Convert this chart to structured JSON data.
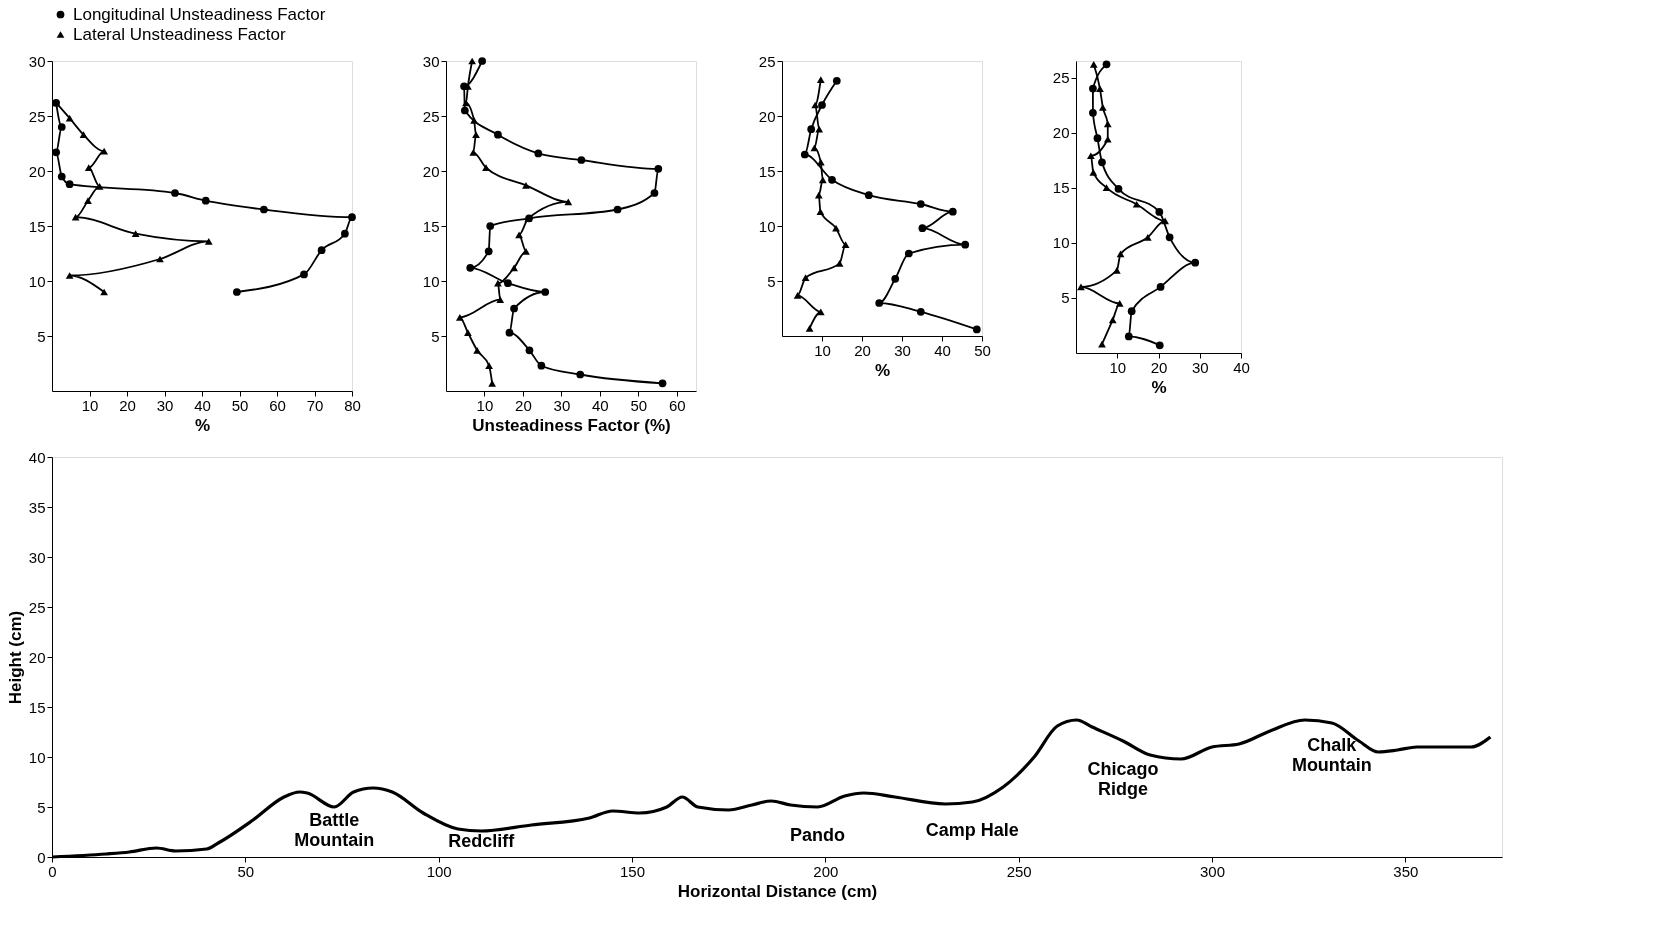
{
  "chart_data": [
    {
      "type": "line",
      "xlabel": "Horizontal Distance (cm)",
      "ylabel": "Height (cm)",
      "xlim": [
        0,
        375
      ],
      "ylim": [
        0,
        40
      ],
      "xticks": [
        0,
        50,
        100,
        150,
        200,
        250,
        300,
        350
      ],
      "yticks": [
        0,
        5,
        10,
        15,
        20,
        25,
        30,
        35,
        40
      ],
      "series": [
        {
          "color": "#000000",
          "marker": "none",
          "line_style": "solid",
          "x": [
            0,
            14,
            20,
            27,
            32,
            40,
            43,
            52,
            60,
            64,
            66,
            73,
            78,
            83,
            88,
            96,
            105,
            111,
            124,
            139,
            145,
            152,
            159,
            163,
            167,
            175,
            181,
            186,
            191,
            198,
            205,
            210,
            218,
            231,
            238,
            246,
            254,
            260,
            265,
            269,
            277,
            284,
            292,
            300,
            307,
            315,
            324,
            331,
            338,
            343,
            348,
            353,
            367,
            372
          ],
          "values": [
            0,
            0.3,
            0.5,
            0.9,
            0.6,
            0.8,
            1.4,
            3.7,
            6.0,
            6.5,
            6.4,
            5.0,
            6.5,
            6.9,
            6.5,
            4.4,
            2.8,
            2.6,
            3.2,
            3.9,
            4.6,
            4.4,
            5.0,
            6.0,
            5.0,
            4.7,
            5.2,
            5.6,
            5.2,
            5.0,
            6.1,
            6.4,
            6.0,
            5.3,
            5.5,
            7.0,
            10.0,
            13.1,
            13.7,
            13.0,
            11.6,
            10.2,
            9.8,
            11.0,
            11.3,
            12.6,
            13.7,
            13.4,
            11.6,
            10.5,
            10.7,
            11.0,
            11.0,
            12.0
          ]
        }
      ],
      "annotations": [
        {
          "text": "Battle\nMountain",
          "x": 73,
          "y": 5.0
        },
        {
          "text": "Redcliff",
          "x": 111,
          "y": 2.6
        },
        {
          "text": "Pando",
          "x": 198,
          "y": 5.0
        },
        {
          "text": "Camp Hale",
          "x": 238,
          "y": 5.5
        },
        {
          "text": "Chicago\nRidge",
          "x": 277,
          "y": 11.6
        },
        {
          "text": "Chalk\nMountain",
          "x": 331,
          "y": 13.4
        }
      ]
    },
    {
      "type": "line",
      "xlabel": "%",
      "xlim": [
        0,
        80
      ],
      "ylim": [
        0,
        30
      ],
      "xticks": [
        10,
        20,
        30,
        40,
        50,
        60,
        70,
        80
      ],
      "yticks": [
        5,
        10,
        15,
        20,
        25,
        30
      ],
      "legend": "top",
      "series": [
        {
          "name": "Longitudinal Unsteadiness Factor",
          "color": "#000000",
          "marker": "circle",
          "line_style": "solid",
          "x": [
            1.1,
            2.6,
            1.1,
            2.6,
            4.7,
            32.8,
            41.0,
            56.5,
            80.0,
            78.1,
            71.9,
            67.2,
            49.3
          ],
          "values": [
            26.2,
            24.0,
            21.7,
            19.5,
            18.8,
            18.0,
            17.3,
            16.5,
            15.8,
            14.3,
            12.8,
            10.6,
            9.0
          ]
        },
        {
          "name": "Lateral Unsteadiness Factor",
          "color": "#000000",
          "marker": "triangle",
          "line_style": "solid",
          "x": [
            1.1,
            4.7,
            8.4,
            13.9,
            9.8,
            12.7,
            9.6,
            6.3,
            22.3,
            41.8,
            28.8,
            4.7,
            13.9
          ],
          "values": [
            26.2,
            24.8,
            23.3,
            21.8,
            20.3,
            18.6,
            17.3,
            15.8,
            14.3,
            13.6,
            12.0,
            10.5,
            9.0
          ]
        }
      ]
    },
    {
      "type": "line",
      "xlabel": "Unsteadiness Factor (%)",
      "xlim": [
        0,
        65
      ],
      "ylim": [
        0,
        30
      ],
      "xticks": [
        10,
        20,
        30,
        40,
        50,
        60
      ],
      "yticks": [
        5,
        10,
        15,
        20,
        25,
        30
      ],
      "series": [
        {
          "color": "#000000",
          "marker": "circle",
          "line_style": "solid",
          "x": [
            9.4,
            4.7,
            4.9,
            13.5,
            24.0,
            35.2,
            55.2,
            54.2,
            44.6,
            21.6,
            11.5,
            11.1,
            6.3,
            16.1,
            25.8,
            17.7,
            16.5,
            21.7,
            24.8,
            34.9,
            56.3
          ],
          "values": [
            30.0,
            27.7,
            25.5,
            23.3,
            21.6,
            21.0,
            20.2,
            18.0,
            16.5,
            15.7,
            15.0,
            12.7,
            11.2,
            9.8,
            9.0,
            7.5,
            5.3,
            3.7,
            2.3,
            1.5,
            0.7
          ]
        },
        {
          "color": "#000000",
          "marker": "triangle",
          "line_style": "solid",
          "x": [
            6.8,
            5.7,
            5.2,
            7.3,
            7.8,
            7.1,
            10.4,
            20.8,
            31.8,
            21.4,
            19.0,
            20.8,
            17.7,
            13.5,
            14.1,
            3.6,
            5.7,
            8.1,
            11.2,
            12.0
          ],
          "values": [
            30.0,
            27.7,
            26.2,
            24.6,
            23.3,
            21.7,
            20.3,
            18.7,
            17.2,
            15.7,
            14.2,
            12.7,
            11.2,
            9.8,
            8.3,
            6.7,
            5.3,
            3.7,
            2.3,
            0.7
          ]
        }
      ]
    },
    {
      "type": "line",
      "xlabel": "%",
      "xlim": [
        0,
        50
      ],
      "ylim": [
        0,
        25
      ],
      "xticks": [
        10,
        20,
        30,
        40,
        50
      ],
      "yticks": [
        5,
        10,
        15,
        20,
        25
      ],
      "series": [
        {
          "color": "#000000",
          "marker": "circle",
          "line_style": "solid",
          "x": [
            13.7,
            10.0,
            7.3,
            5.7,
            12.5,
            21.7,
            34.7,
            42.7,
            35.1,
            45.8,
            31.7,
            28.3,
            24.3,
            34.7,
            48.7
          ],
          "values": [
            23.2,
            21.0,
            18.8,
            16.5,
            14.2,
            12.8,
            12.0,
            11.3,
            9.8,
            8.3,
            7.5,
            5.2,
            3.0,
            2.2,
            0.6
          ]
        },
        {
          "color": "#000000",
          "marker": "triangle",
          "line_style": "solid",
          "x": [
            9.7,
            8.3,
            9.3,
            8.1,
            9.7,
            10.2,
            9.2,
            9.6,
            13.5,
            15.9,
            14.4,
            5.9,
            3.9,
            9.7,
            6.9
          ],
          "values": [
            23.3,
            21.0,
            18.8,
            17.1,
            15.8,
            14.2,
            12.8,
            11.3,
            9.8,
            8.3,
            6.6,
            5.3,
            3.7,
            2.2,
            0.7
          ]
        }
      ]
    },
    {
      "type": "line",
      "xlabel": "%",
      "xlim": [
        0,
        40
      ],
      "ylim": [
        0,
        26.5
      ],
      "xticks": [
        10,
        20,
        30,
        40
      ],
      "yticks": [
        5,
        10,
        15,
        20,
        25
      ],
      "series": [
        {
          "color": "#000000",
          "marker": "circle",
          "line_style": "solid",
          "x": [
            7.4,
            4.1,
            4.1,
            5.2,
            6.3,
            10.3,
            20.2,
            22.7,
            28.9,
            20.5,
            13.5,
            12.8,
            20.3
          ],
          "values": [
            26.2,
            24.0,
            21.8,
            19.5,
            17.3,
            14.9,
            12.8,
            10.5,
            8.2,
            6.0,
            3.8,
            1.5,
            0.7
          ]
        },
        {
          "color": "#000000",
          "marker": "triangle",
          "line_style": "solid",
          "x": [
            4.3,
            5.8,
            6.5,
            7.7,
            7.7,
            3.6,
            4.2,
            7.4,
            14.7,
            21.6,
            17.4,
            10.8,
            9.9,
            1.2,
            10.6,
            8.9,
            6.3
          ],
          "values": [
            26.2,
            24.0,
            22.3,
            20.8,
            19.4,
            17.9,
            16.4,
            15.0,
            13.5,
            12.0,
            10.5,
            9.0,
            7.5,
            6.0,
            4.5,
            3.0,
            0.8
          ]
        }
      ]
    }
  ]
}
